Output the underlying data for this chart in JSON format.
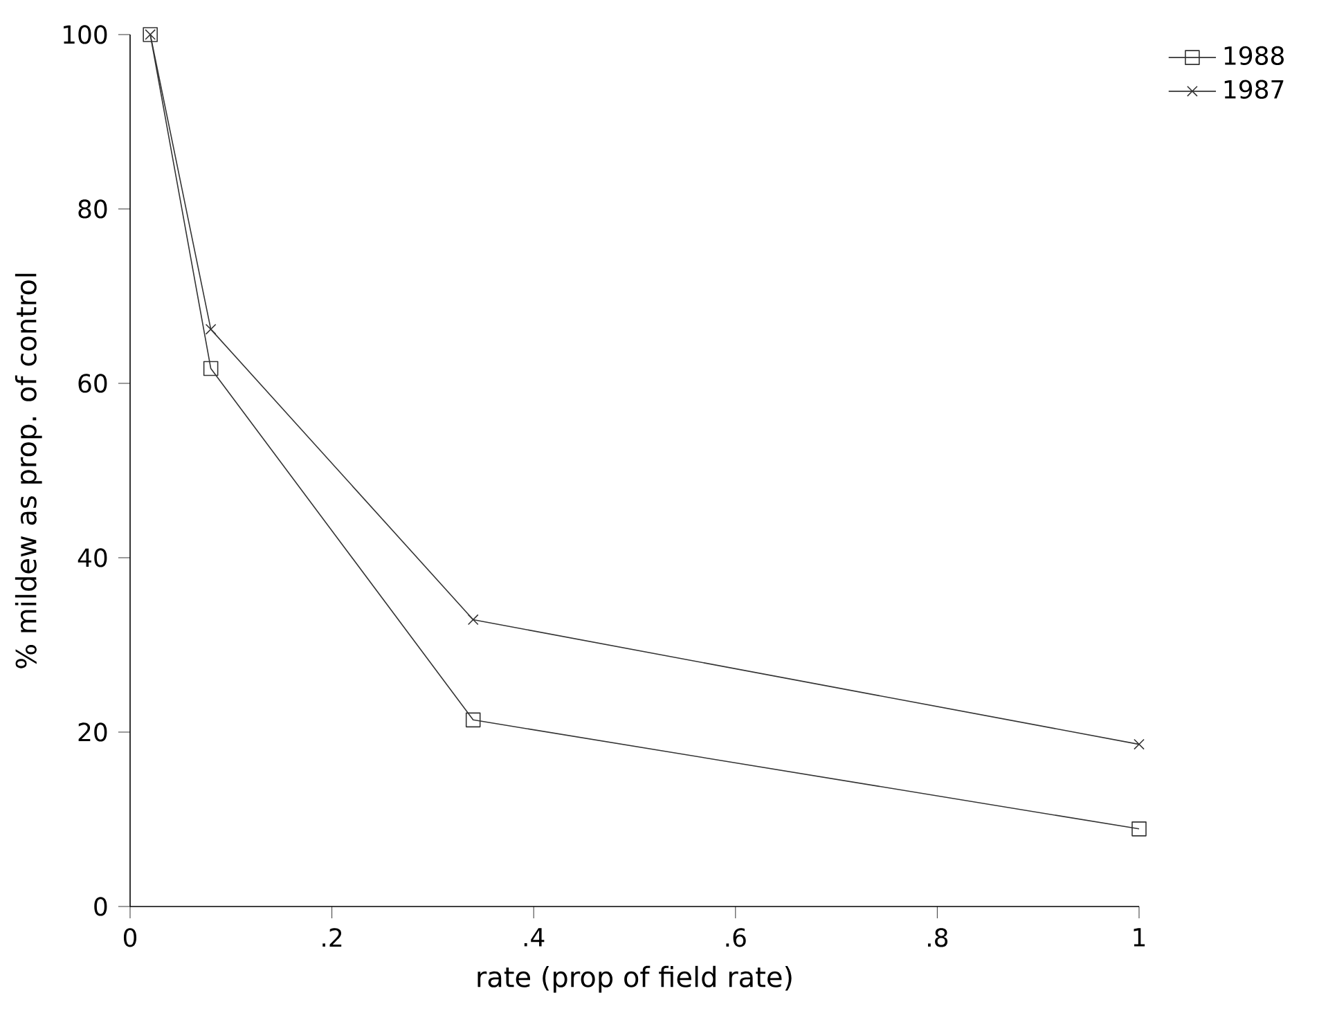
{
  "chart_data": {
    "type": "line",
    "xlabel": "rate (prop of field rate)",
    "ylabel": "% mildew as prop. of control",
    "x": [
      0.02,
      0.08,
      0.34,
      1
    ],
    "series": [
      {
        "name": "1988",
        "color": "#333333",
        "marker": "square",
        "values": [
          100,
          61.7,
          21.4,
          8.9
        ]
      },
      {
        "name": "1987",
        "color": "#333333",
        "marker": "cross",
        "values": [
          100,
          66.2,
          32.9,
          18.6
        ]
      }
    ],
    "xlim": [
      0,
      1
    ],
    "ylim": [
      0,
      100
    ],
    "xticks": [
      0,
      {
        "value": 0.2,
        "label": ".2"
      },
      {
        "value": 0.4,
        "label": ".4"
      },
      {
        "value": 0.6,
        "label": ".6"
      },
      {
        "value": 0.8,
        "label": ".8"
      },
      1
    ],
    "yticks": [
      0,
      20,
      40,
      60,
      80,
      100
    ],
    "grid": false,
    "legend": "top right",
    "line_style": "solid"
  }
}
